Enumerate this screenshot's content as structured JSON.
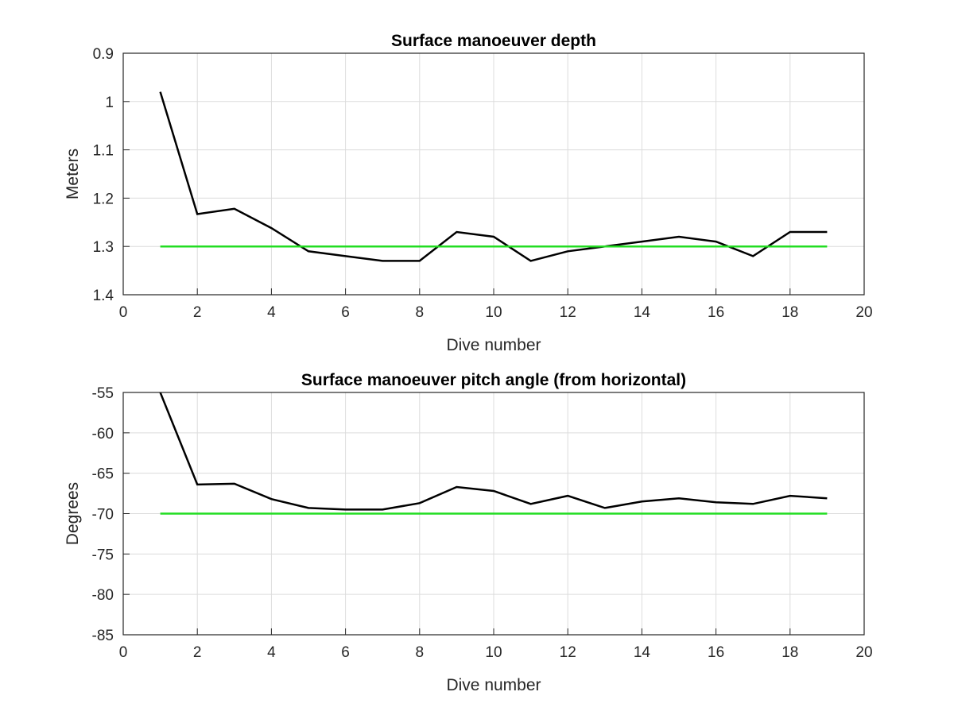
{
  "chart_data": [
    {
      "type": "line",
      "title": "Surface manoeuver depth",
      "xlabel": "Dive number",
      "ylabel": "Meters",
      "xlim": [
        0,
        20
      ],
      "ylim": [
        0.9,
        1.4
      ],
      "y_reversed": true,
      "grid": true,
      "x_ticks": [
        "0",
        "2",
        "4",
        "6",
        "8",
        "10",
        "12",
        "14",
        "16",
        "18",
        "20"
      ],
      "y_ticks": [
        "0.9",
        "1",
        "1.1",
        "1.2",
        "1.3",
        "1.4"
      ],
      "series": [
        {
          "color": "#000000",
          "x": [
            1,
            2,
            3,
            4,
            5,
            6,
            7,
            8,
            9,
            10,
            11,
            12,
            13,
            14,
            15,
            16,
            17,
            18,
            19
          ],
          "values": [
            0.98,
            1.233,
            1.222,
            1.262,
            1.31,
            1.32,
            1.33,
            1.33,
            1.27,
            1.28,
            1.33,
            1.31,
            1.3,
            1.29,
            1.28,
            1.29,
            1.32,
            1.27,
            1.27
          ]
        },
        {
          "color": "#22dd22",
          "x": [
            1,
            19
          ],
          "values": [
            1.3,
            1.3
          ]
        }
      ]
    },
    {
      "type": "line",
      "title": "Surface manoeuver pitch angle (from horizontal)",
      "xlabel": "Dive number",
      "ylabel": "Degrees",
      "xlim": [
        0,
        20
      ],
      "ylim": [
        -85,
        -55
      ],
      "y_reversed": false,
      "grid": true,
      "x_ticks": [
        "0",
        "2",
        "4",
        "6",
        "8",
        "10",
        "12",
        "14",
        "16",
        "18",
        "20"
      ],
      "y_ticks": [
        "-55",
        "-60",
        "-65",
        "-70",
        "-75",
        "-80",
        "-85"
      ],
      "series": [
        {
          "color": "#000000",
          "x": [
            1,
            2,
            3,
            4,
            5,
            6,
            7,
            8,
            9,
            10,
            11,
            12,
            13,
            14,
            15,
            16,
            17,
            18,
            19
          ],
          "values": [
            -55,
            -66.4,
            -66.3,
            -68.2,
            -69.3,
            -69.5,
            -69.5,
            -68.7,
            -66.7,
            -67.2,
            -68.8,
            -67.8,
            -69.3,
            -68.5,
            -68.1,
            -68.6,
            -68.8,
            -67.8,
            -68.1
          ]
        },
        {
          "color": "#22dd22",
          "x": [
            1,
            19
          ],
          "values": [
            -70,
            -70
          ]
        }
      ]
    }
  ]
}
